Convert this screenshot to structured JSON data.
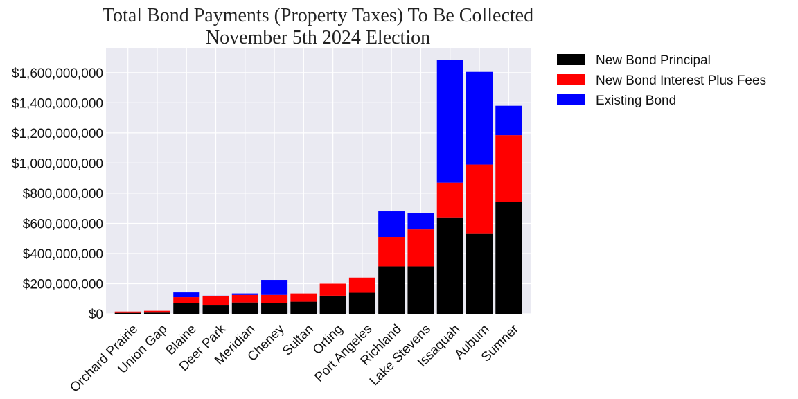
{
  "chart_data": {
    "type": "bar",
    "stacked": true,
    "title": [
      "Total Bond Payments (Property Taxes) To Be Collected",
      "November 5th 2024 Election"
    ],
    "xlabel": "",
    "ylabel": "",
    "ylim": [
      0,
      1760000000
    ],
    "yticks": [
      0,
      200000000,
      400000000,
      600000000,
      800000000,
      1000000000,
      1200000000,
      1400000000,
      1600000000
    ],
    "ytick_labels": [
      "$0",
      "$200,000,000",
      "$400,000,000",
      "$600,000,000",
      "$800,000,000",
      "$1,000,000,000",
      "$1,200,000,000",
      "$1,400,000,000",
      "$1,600,000,000"
    ],
    "grid": true,
    "background": "#eaeaf2",
    "legend_position": "outside-right",
    "categories": [
      "Orchard Prairie",
      "Union Gap",
      "Blaine",
      "Deer Park",
      "Meridian",
      "Cheney",
      "Sultan",
      "Orting",
      "Port Angeles",
      "Richland",
      "Lake Stevens",
      "Issaquah",
      "Auburn",
      "Sumner"
    ],
    "series": [
      {
        "name": "New Bond Principal",
        "color": "#000000",
        "values": [
          6000000,
          8000000,
          70000000,
          55000000,
          75000000,
          70000000,
          80000000,
          120000000,
          140000000,
          315000000,
          315000000,
          640000000,
          530000000,
          740000000
        ]
      },
      {
        "name": "New Bond Interest Plus Fees",
        "color": "#ff0000",
        "values": [
          9000000,
          12000000,
          40000000,
          60000000,
          50000000,
          55000000,
          55000000,
          80000000,
          100000000,
          195000000,
          245000000,
          230000000,
          460000000,
          445000000
        ]
      },
      {
        "name": "Existing Bond",
        "color": "#0000ff",
        "values": [
          0,
          0,
          32000000,
          5000000,
          10000000,
          100000000,
          0,
          0,
          0,
          170000000,
          110000000,
          815000000,
          615000000,
          195000000
        ]
      }
    ]
  }
}
